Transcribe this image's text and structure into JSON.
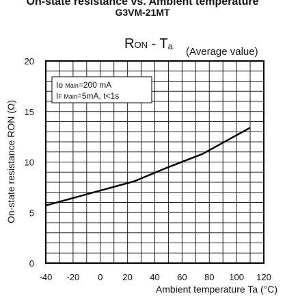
{
  "header": {
    "title": "On-state resistance vs. Ambient temperature",
    "model": "G3VM-21MT"
  },
  "chart_data": {
    "type": "line",
    "title": "RON - Ta",
    "title_main": "R",
    "title_sub": "ON",
    "title_dash": " - T",
    "title_sub2": "a",
    "subtitle": "(Average value)",
    "xlabel": "Ambient temperature Ta (°C)",
    "ylabel": "On-state resistance RON (Ω)",
    "xlim": [
      -40,
      120
    ],
    "ylim": [
      0,
      20
    ],
    "xticks": [
      "-40",
      "-20",
      "0",
      "20",
      "40",
      "60",
      "80",
      "100",
      "120"
    ],
    "yticks": [
      "0",
      "5",
      "10",
      "15",
      "20"
    ],
    "grid": true,
    "legend": {
      "line1_prefix": "Io ",
      "line1_sub": "Main",
      "line1_value": "=200 mA",
      "line2_prefix": "I",
      "line2_sub": "F Main",
      "line2_value": "=5mA, t<1s"
    },
    "series": [
      {
        "values": [
          {
            "x": -40,
            "y": 5.7
          },
          {
            "x": 25,
            "y": 8.1
          },
          {
            "x": 50,
            "y": 9.5
          },
          {
            "x": 75,
            "y": 10.8
          },
          {
            "x": 110,
            "y": 13.4
          }
        ]
      }
    ],
    "color": "#000000"
  }
}
